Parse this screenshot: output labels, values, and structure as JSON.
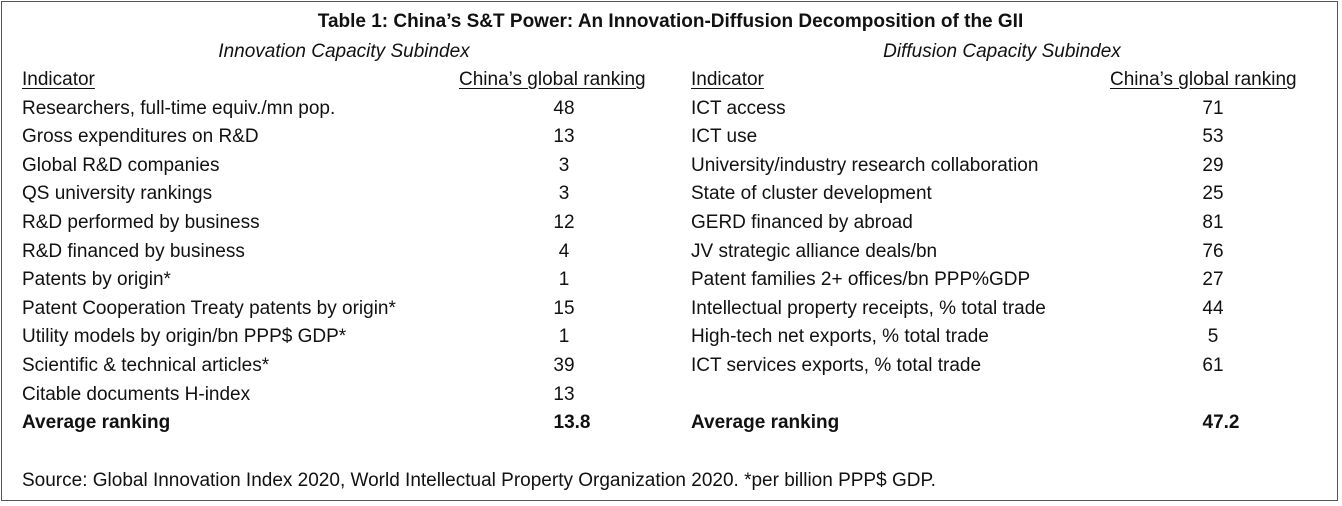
{
  "table": {
    "title": "Table 1: China’s S&T Power: An Innovation-Diffusion Decomposition of the GII",
    "innovation": {
      "subtitle": "Innovation Capacity Subindex",
      "indicator_header": "Indicator",
      "ranking_header": "China’s global ranking",
      "rows": [
        {
          "indicator": "Researchers, full-time equiv./mn pop.",
          "rank": "48"
        },
        {
          "indicator": "Gross expenditures on R&D",
          "rank": "13"
        },
        {
          "indicator": "Global R&D companies",
          "rank": "3"
        },
        {
          "indicator": "QS university rankings",
          "rank": "3"
        },
        {
          "indicator": "R&D performed by business",
          "rank": "12"
        },
        {
          "indicator": "R&D financed by business",
          "rank": "4"
        },
        {
          "indicator": "Patents by origin*",
          "rank": "1"
        },
        {
          "indicator": "Patent Cooperation Treaty patents by origin*",
          "rank": "15"
        },
        {
          "indicator": "Utility models by origin/bn PPP$ GDP*",
          "rank": "1"
        },
        {
          "indicator": "Scientific & technical articles*",
          "rank": "39"
        },
        {
          "indicator": "Citable documents H-index",
          "rank": "13"
        }
      ],
      "average_label": "Average ranking",
      "average_value": "13.8"
    },
    "diffusion": {
      "subtitle": "Diffusion Capacity Subindex",
      "indicator_header": "Indicator",
      "ranking_header": "China’s global ranking",
      "rows": [
        {
          "indicator": "ICT access",
          "rank": "71"
        },
        {
          "indicator": "ICT use",
          "rank": "53"
        },
        {
          "indicator": "University/industry research collaboration",
          "rank": "29"
        },
        {
          "indicator": "State of cluster development",
          "rank": "25"
        },
        {
          "indicator": "GERD financed by abroad",
          "rank": "81"
        },
        {
          "indicator": "JV strategic alliance deals/bn",
          "rank": "76"
        },
        {
          "indicator": "Patent families 2+ offices/bn PPP%GDP",
          "rank": "27"
        },
        {
          "indicator": "Intellectual property receipts, % total trade",
          "rank": "44"
        },
        {
          "indicator": "High-tech net exports, % total trade",
          "rank": "5"
        },
        {
          "indicator": "ICT services exports, % total trade",
          "rank": "61"
        }
      ],
      "average_label": "Average ranking",
      "average_value": "47.2"
    },
    "source": "Source: Global Innovation Index 2020, World Intellectual Property Organization 2020. *per billion PPP$ GDP."
  }
}
